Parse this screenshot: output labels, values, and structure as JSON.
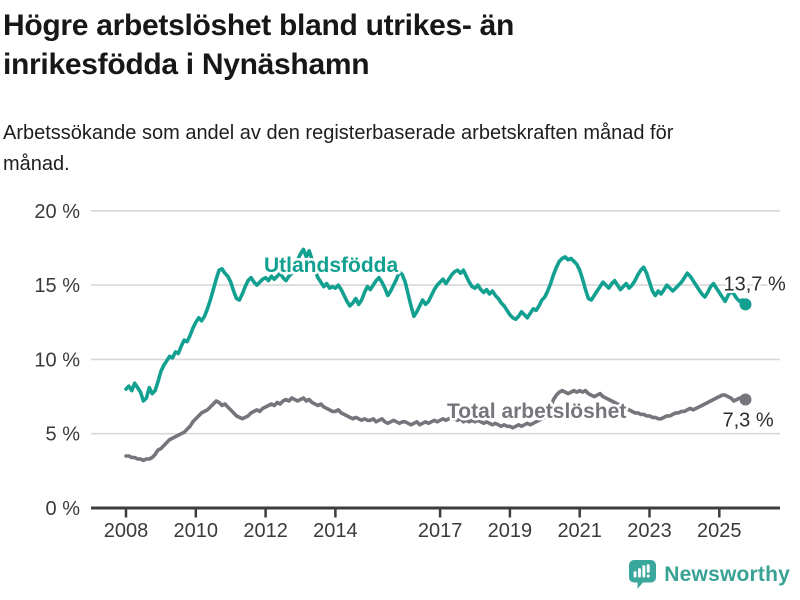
{
  "page": {
    "background": "#ffffff"
  },
  "chart_data": {
    "type": "line",
    "title": "Högre arbetslöshet bland utrikes- än inrikesfödda i Nynäshamn",
    "subtitle": "Arbetssökande som andel av den registerbaserade arbetskraften månad för månad.",
    "grid": true,
    "legend_position": "inline-labels",
    "x": {
      "start_year": 2008,
      "frequency": "monthly",
      "tick_years": [
        2008,
        2010,
        2012,
        2014,
        2017,
        2019,
        2021,
        2023,
        2025
      ],
      "tick_labels": [
        "2008",
        "2010",
        "2012",
        "2014",
        "2017",
        "2019",
        "2021",
        "2023",
        "2025"
      ]
    },
    "y": {
      "min": 0,
      "max": 20,
      "ticks": [
        0,
        5,
        10,
        15,
        20
      ],
      "tick_labels": [
        "0 %",
        "5 %",
        "10 %",
        "15 %",
        "20 %"
      ]
    },
    "series": [
      {
        "name": "Utlandsfödda",
        "color": "#12a091",
        "end_label": "13,7 %",
        "last_value": 13.7,
        "values": [
          8.0,
          8.2,
          7.9,
          8.4,
          8.1,
          7.8,
          7.2,
          7.4,
          8.1,
          7.7,
          7.9,
          8.5,
          9.2,
          9.6,
          9.9,
          10.2,
          10.1,
          10.5,
          10.4,
          10.9,
          11.3,
          11.2,
          11.6,
          12.1,
          12.5,
          12.8,
          12.6,
          12.9,
          13.4,
          14.0,
          14.7,
          15.4,
          16.0,
          16.1,
          15.8,
          15.6,
          15.2,
          14.6,
          14.1,
          14.0,
          14.4,
          14.9,
          15.3,
          15.5,
          15.2,
          15.0,
          15.2,
          15.4,
          15.5,
          15.3,
          15.6,
          15.4,
          15.6,
          15.8,
          15.5,
          15.3,
          15.6,
          15.8,
          16.2,
          16.7,
          17.1,
          17.4,
          16.9,
          17.3,
          16.7,
          16.0,
          15.5,
          15.2,
          14.9,
          15.1,
          14.8,
          14.9,
          14.8,
          15.0,
          14.7,
          14.3,
          13.9,
          13.6,
          13.8,
          14.1,
          13.7,
          14.0,
          14.5,
          14.9,
          14.7,
          15.0,
          15.3,
          15.5,
          15.2,
          14.8,
          14.3,
          14.6,
          15.0,
          15.4,
          15.9,
          15.7,
          15.2,
          14.4,
          13.6,
          12.9,
          13.2,
          13.6,
          14.0,
          13.7,
          13.9,
          14.3,
          14.7,
          15.0,
          15.2,
          15.4,
          15.1,
          15.4,
          15.7,
          15.9,
          16.0,
          15.8,
          16.0,
          15.6,
          15.2,
          14.9,
          14.8,
          15.0,
          14.7,
          14.5,
          14.7,
          14.4,
          14.6,
          14.3,
          14.1,
          13.8,
          13.6,
          13.3,
          13.0,
          12.8,
          12.7,
          12.9,
          13.2,
          13.0,
          12.8,
          13.1,
          13.4,
          13.3,
          13.6,
          14.0,
          14.2,
          14.6,
          15.1,
          15.7,
          16.2,
          16.6,
          16.8,
          16.9,
          16.7,
          16.8,
          16.6,
          16.4,
          16.0,
          15.4,
          14.7,
          14.1,
          14.0,
          14.3,
          14.6,
          14.9,
          15.2,
          15.0,
          14.8,
          15.1,
          15.3,
          15.0,
          14.7,
          14.9,
          15.1,
          14.8,
          15.0,
          15.3,
          15.7,
          16.0,
          16.2,
          15.8,
          15.2,
          14.6,
          14.3,
          14.6,
          14.4,
          14.7,
          15.0,
          14.8,
          14.6,
          14.8,
          15.0,
          15.2,
          15.5,
          15.8,
          15.6,
          15.3,
          15.0,
          14.7,
          14.4,
          14.2,
          14.5,
          14.9,
          15.1,
          14.8,
          14.5,
          14.2,
          13.9,
          14.3,
          14.6,
          14.4,
          14.1,
          13.9,
          14.0,
          13.7
        ]
      },
      {
        "name": "Total arbetslöshet",
        "color": "#76757c",
        "end_label": "7,3 %",
        "last_value": 7.3,
        "values": [
          3.5,
          3.5,
          3.4,
          3.4,
          3.3,
          3.3,
          3.2,
          3.3,
          3.3,
          3.4,
          3.6,
          3.9,
          4.0,
          4.2,
          4.4,
          4.6,
          4.7,
          4.8,
          4.9,
          5.0,
          5.1,
          5.3,
          5.5,
          5.8,
          6.0,
          6.2,
          6.4,
          6.5,
          6.6,
          6.8,
          7.0,
          7.2,
          7.1,
          6.9,
          7.0,
          6.8,
          6.6,
          6.4,
          6.2,
          6.1,
          6.0,
          6.1,
          6.2,
          6.4,
          6.5,
          6.6,
          6.5,
          6.7,
          6.8,
          6.9,
          7.0,
          6.9,
          7.1,
          7.0,
          7.2,
          7.3,
          7.2,
          7.4,
          7.3,
          7.2,
          7.3,
          7.4,
          7.2,
          7.3,
          7.1,
          7.0,
          6.9,
          7.0,
          6.8,
          6.7,
          6.6,
          6.5,
          6.5,
          6.6,
          6.4,
          6.3,
          6.2,
          6.1,
          6.0,
          6.1,
          6.0,
          5.9,
          6.0,
          5.9,
          5.9,
          6.0,
          5.8,
          5.9,
          6.0,
          5.8,
          5.7,
          5.8,
          5.9,
          5.8,
          5.7,
          5.8,
          5.8,
          5.7,
          5.6,
          5.7,
          5.8,
          5.6,
          5.7,
          5.8,
          5.7,
          5.8,
          5.9,
          5.8,
          5.9,
          6.0,
          5.9,
          6.0,
          6.1,
          6.0,
          5.9,
          6.0,
          5.8,
          5.9,
          5.8,
          5.9,
          5.8,
          5.9,
          5.8,
          5.7,
          5.8,
          5.7,
          5.6,
          5.7,
          5.6,
          5.5,
          5.6,
          5.5,
          5.5,
          5.4,
          5.5,
          5.6,
          5.5,
          5.6,
          5.7,
          5.6,
          5.7,
          5.8,
          5.9,
          6.0,
          6.1,
          6.3,
          6.8,
          7.3,
          7.6,
          7.8,
          7.9,
          7.8,
          7.7,
          7.8,
          7.9,
          7.8,
          7.9,
          7.8,
          7.9,
          7.7,
          7.6,
          7.5,
          7.6,
          7.7,
          7.5,
          7.4,
          7.3,
          7.2,
          7.1,
          7.0,
          6.9,
          6.8,
          6.7,
          6.6,
          6.5,
          6.4,
          6.4,
          6.3,
          6.3,
          6.2,
          6.2,
          6.1,
          6.1,
          6.0,
          6.0,
          6.1,
          6.2,
          6.2,
          6.3,
          6.4,
          6.4,
          6.5,
          6.5,
          6.6,
          6.7,
          6.6,
          6.7,
          6.8,
          6.9,
          7.0,
          7.1,
          7.2,
          7.3,
          7.4,
          7.5,
          7.6,
          7.6,
          7.5,
          7.4,
          7.2,
          7.3,
          7.4,
          7.4,
          7.3
        ]
      }
    ],
    "colors": {
      "gridline": "#d8d8d8",
      "axis": "#3d3d3d",
      "tick_label": "#3a3a3a",
      "end_label_text": "#2d2d2d"
    }
  },
  "footer": {
    "brand": "Newsworthy",
    "brand_color": "#38a295"
  }
}
